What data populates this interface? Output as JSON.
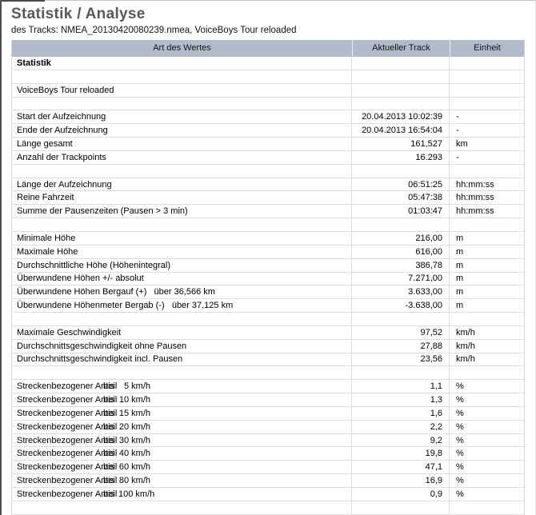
{
  "page": {
    "title": "Statistik / Analyse",
    "subtitle": "des Tracks: NMEA_20130420080239.nmea, VoiceBoys Tour reloaded"
  },
  "colors": {
    "header_background": "#b0bcca",
    "grid_line": "#dedede",
    "title_text": "#595959",
    "frame_border": "#4b4b4b"
  },
  "table": {
    "headers": [
      "Art des Wertes",
      "Aktueller Track",
      "Einheit"
    ],
    "rows": [
      {
        "label": "Statistik",
        "value": "",
        "unit": "",
        "bold": true
      },
      {
        "label": "",
        "value": "",
        "unit": ""
      },
      {
        "label": "VoiceBoys Tour reloaded",
        "value": "",
        "unit": ""
      },
      {
        "label": "",
        "value": "",
        "unit": ""
      },
      {
        "label": "Start der Aufzeichnung",
        "value": "20.04.2013 10:02:39",
        "unit": "-"
      },
      {
        "label": "Ende der Aufzeichnung",
        "value": "20.04.2013 16:54:04",
        "unit": "-"
      },
      {
        "label": "Länge gesamt",
        "value": "161,527",
        "unit": "km"
      },
      {
        "label": "Anzahl der Trackpoints",
        "value": "16.293",
        "unit": "-"
      },
      {
        "label": "",
        "value": "",
        "unit": ""
      },
      {
        "label": "Länge der Aufzeichnung",
        "value": "06:51:25",
        "unit": "hh:mm:ss"
      },
      {
        "label": "Reine Fahrzeit",
        "value": "05:47:38",
        "unit": "hh:mm:ss"
      },
      {
        "label": "Summe der Pausenzeiten (Pausen > 3 min)",
        "value": "01:03:47",
        "unit": "hh:mm:ss"
      },
      {
        "label": "",
        "value": "",
        "unit": ""
      },
      {
        "label": "Minimale Höhe",
        "value": "216,00",
        "unit": "m"
      },
      {
        "label": "Maximale Höhe",
        "value": "616,00",
        "unit": "m"
      },
      {
        "label": "Durchschnittliche Höhe (Höhenintegral)",
        "value": "386,78",
        "unit": "m"
      },
      {
        "label": "Überwundene Höhen +/- absolut",
        "value": "7.271,00",
        "unit": "m"
      },
      {
        "label": "Überwundene Höhen Bergauf (+)   über 36,566 km",
        "value": "3.633,00",
        "unit": "m"
      },
      {
        "label": "Überwundene Höhenmeter Bergab (-)   über 37,125 km",
        "value": "-3.638,00",
        "unit": "m"
      },
      {
        "label": "",
        "value": "",
        "unit": ""
      },
      {
        "label": "Maximale Geschwindigkeit",
        "value": "97,52",
        "unit": "km/h"
      },
      {
        "label": "Durchschnittsgeschwindigkeit ohne Pausen",
        "value": "27,88",
        "unit": "km/h"
      },
      {
        "label": "Durchschnittsgeschwindigkeit incl. Pausen",
        "value": "23,56",
        "unit": "km/h"
      },
      {
        "label": "",
        "value": "",
        "unit": ""
      },
      {
        "label": "Streckenbezogener Anteil",
        "bis": "bis",
        "speed": "5 km/h",
        "value": "1,1",
        "unit": "%"
      },
      {
        "label": "Streckenbezogener Anteil",
        "bis": "bis",
        "speed": "10 km/h",
        "value": "1,3",
        "unit": "%"
      },
      {
        "label": "Streckenbezogener Anteil",
        "bis": "bis",
        "speed": "15 km/h",
        "value": "1,6",
        "unit": "%"
      },
      {
        "label": "Streckenbezogener Anteil",
        "bis": "bis",
        "speed": "20 km/h",
        "value": "2,2",
        "unit": "%"
      },
      {
        "label": "Streckenbezogener Anteil",
        "bis": "bis",
        "speed": "30 km/h",
        "value": "9,2",
        "unit": "%"
      },
      {
        "label": "Streckenbezogener Anteil",
        "bis": "bis",
        "speed": "40 km/h",
        "value": "19,8",
        "unit": "%"
      },
      {
        "label": "Streckenbezogener Anteil",
        "bis": "bis",
        "speed": "60 km/h",
        "value": "47,1",
        "unit": "%"
      },
      {
        "label": "Streckenbezogener Anteil",
        "bis": "bis",
        "speed": "80 km/h",
        "value": "16,9",
        "unit": "%"
      },
      {
        "label": "Streckenbezogener Anteil",
        "bis": "bis",
        "speed": "100 km/h",
        "value": "0,9",
        "unit": "%"
      },
      {
        "label": "",
        "value": "",
        "unit": ""
      }
    ]
  }
}
